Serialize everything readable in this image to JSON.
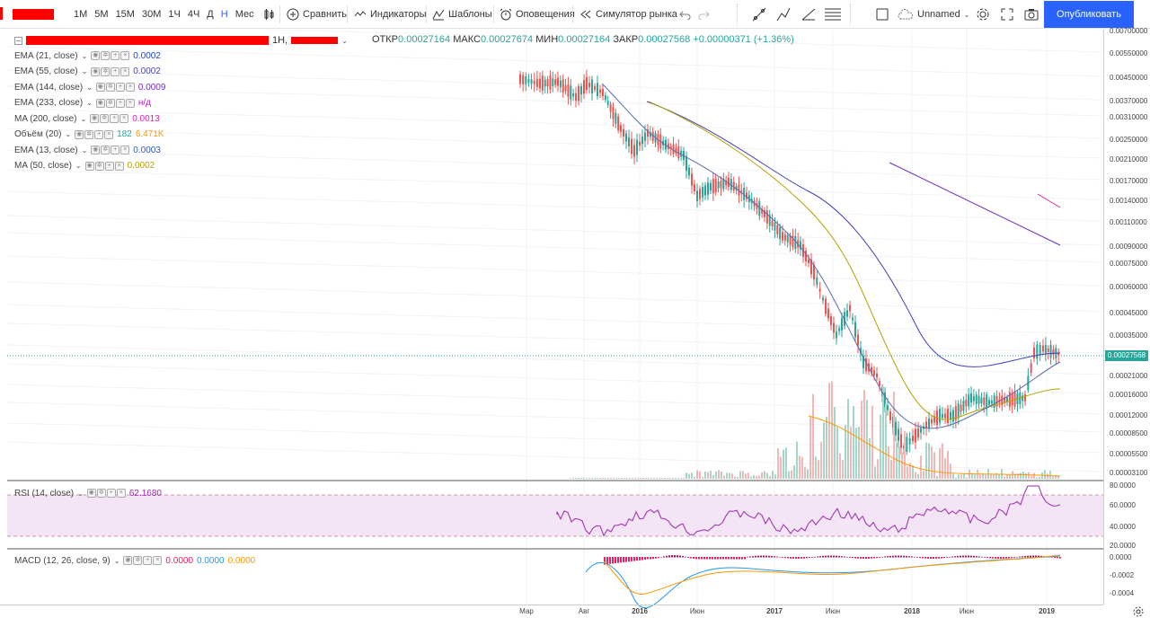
{
  "toolbar": {
    "intervals": [
      "1М",
      "5М",
      "15М",
      "30М",
      "1Ч",
      "4Ч",
      "Д",
      "Н",
      "Мес"
    ],
    "active_interval": "Н",
    "compare_label": "Сравнить",
    "indicators_label": "Индикаторы",
    "templates_label": "Шаблоны",
    "alerts_label": "Оповещения",
    "replay_label": "Симулятор рынка",
    "layout_name": "Unnamed",
    "publish_label": "Опубликовать"
  },
  "symbol": {
    "interval_label": "1Н,",
    "ohlc": {
      "open_label": "ОТКР",
      "open": "0.00027164",
      "high_label": "МАКС",
      "high": "0.00027674",
      "low_label": "МИН",
      "low": "0.00027164",
      "close_label": "ЗАКР",
      "close": "0.00027568",
      "change": "+0.00000371 (+1.36%)"
    },
    "last_price": "0.00027568"
  },
  "indicators": [
    {
      "name": "EMA (21, close)",
      "value": "0.0002",
      "color": "#1848cc"
    },
    {
      "name": "EMA (55, close)",
      "value": "0.0002",
      "color": "#3f3fbf"
    },
    {
      "name": "EMA (144, close)",
      "value": "0.0009",
      "color": "#6a2fbf"
    },
    {
      "name": "EMA (233, close)",
      "value": "н/д",
      "color": "#c020c0"
    },
    {
      "name": "MA (200, close)",
      "value": "0.0013",
      "color": "#e020b0"
    },
    {
      "name": "Объём (20)",
      "value": "182",
      "value2": "6.471K",
      "color": "#26a69a",
      "color2": "#ff9800"
    },
    {
      "name": "EMA (13, close)",
      "value": "0.0003",
      "color": "#2a5ac0"
    },
    {
      "name": "MA (50, close)",
      "value": "0.0002",
      "color": "#b8a000"
    }
  ],
  "rsi": {
    "name": "RSI (14, close)",
    "value": "62.1680",
    "color": "#9c27b0"
  },
  "macd": {
    "name": "MACD (12, 26, close, 9)",
    "v1": "0.0000",
    "v2": "0.0000",
    "v3": "0.0000",
    "c1": "#e91e63",
    "c2": "#2196f3",
    "c3": "#ff9800"
  },
  "price_axis": [
    "0.00700000",
    "0.00550000",
    "0.00450000",
    "0.00370000",
    "0.00310000",
    "0.00250000",
    "0.00210000",
    "0.00170000",
    "0.00140000",
    "0.00110000",
    "0.00090000",
    "0.00075000",
    "0.00060000",
    "0.00045000",
    "0.00035000",
    "0.00027568",
    "0.00021000",
    "0.00016000",
    "0.00012000",
    "0.00008500",
    "0.00005500",
    "0.00003100"
  ],
  "rsi_axis": [
    "80.0000",
    "60.0000",
    "40.0000",
    "20.0000"
  ],
  "macd_axis": [
    "0.0000",
    "-0.0002",
    "-0.0004"
  ],
  "time_axis": [
    "Мар",
    "Авг",
    "2016",
    "Июн",
    "2017",
    "Июн",
    "2018",
    "Июн",
    "2019"
  ]
}
